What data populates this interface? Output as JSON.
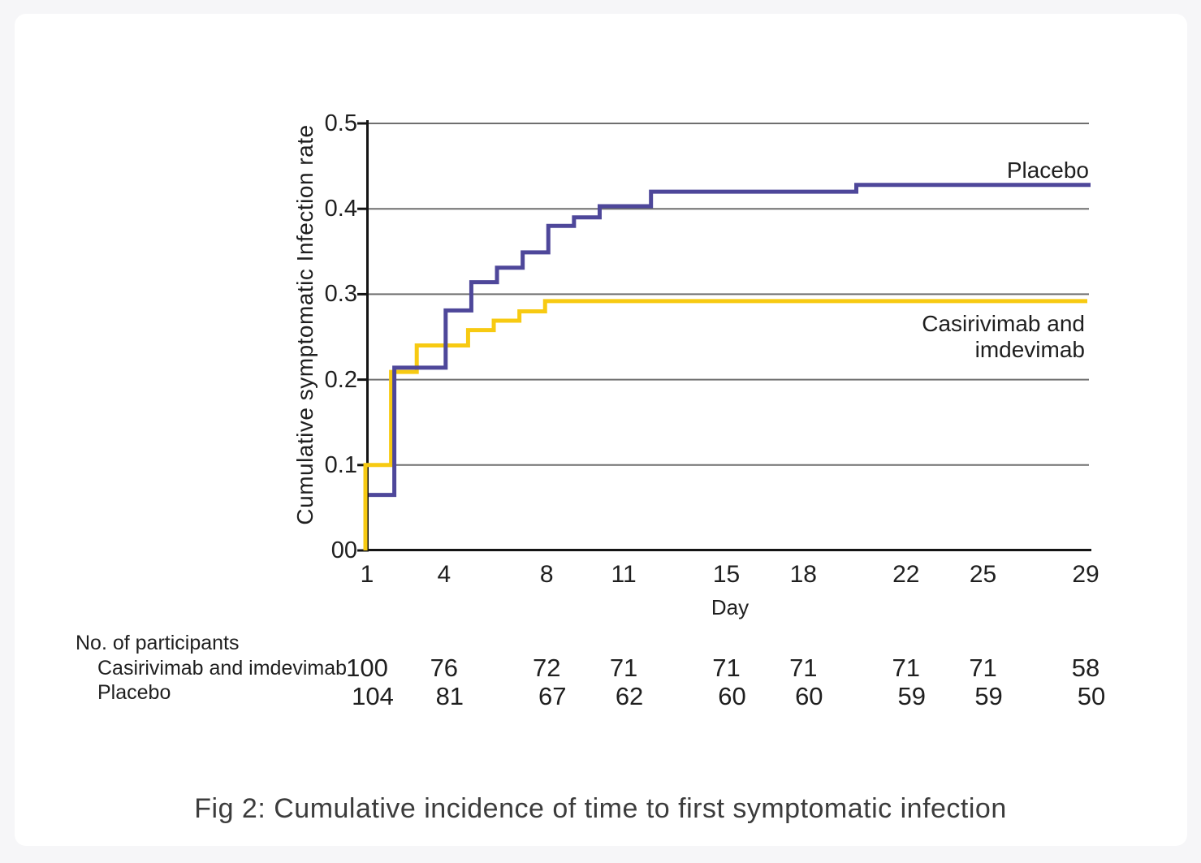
{
  "figure": {
    "caption": "Fig 2: Cumulative incidence of time to first symptomatic infection"
  },
  "chart_data": {
    "type": "line",
    "subtype": "kaplan-meier-step-cumulative-incidence",
    "title": "Fig 2: Cumulative incidence of time to first symptomatic infection",
    "xlabel": "Day",
    "ylabel": "Cumulative  symptomatic Infection  rate",
    "xlim": [
      1,
      29
    ],
    "ylim": [
      0,
      0.5
    ],
    "x_ticks": [
      {
        "value": 1,
        "label": "1"
      },
      {
        "value": 4,
        "label": "4"
      },
      {
        "value": 8,
        "label": "8"
      },
      {
        "value": 11,
        "label": "11"
      },
      {
        "value": 15,
        "label": "15"
      },
      {
        "value": 18,
        "label": "18"
      },
      {
        "value": 22,
        "label": "22"
      },
      {
        "value": 25,
        "label": "25"
      },
      {
        "value": 29,
        "label": "29"
      }
    ],
    "y_ticks": [
      {
        "value": 0.0,
        "label": "00"
      },
      {
        "value": 0.1,
        "label": "0.1"
      },
      {
        "value": 0.2,
        "label": "0.2"
      },
      {
        "value": 0.3,
        "label": "0.3"
      },
      {
        "value": 0.4,
        "label": "0.4"
      },
      {
        "value": 0.5,
        "label": "0.5"
      }
    ],
    "grid": "horizontal-only",
    "grid_color": "#6f6f6f",
    "axis_color": "#141414",
    "legend_position": "inline-labels-right-of-curves",
    "series": [
      {
        "name": "Placebo",
        "color": "#4e479a",
        "steps": [
          [
            1,
            0.065
          ],
          [
            2,
            0.214
          ],
          [
            4,
            0.281
          ],
          [
            5,
            0.314
          ],
          [
            6,
            0.331
          ],
          [
            7,
            0.349
          ],
          [
            8,
            0.38
          ],
          [
            9,
            0.39
          ],
          [
            10,
            0.403
          ],
          [
            12,
            0.42
          ],
          [
            20,
            0.428
          ],
          [
            29,
            0.428
          ]
        ]
      },
      {
        "name": "Casirivimab and imdevimab",
        "color": "#f7ca12",
        "steps": [
          [
            1,
            0.0
          ],
          [
            1,
            0.1
          ],
          [
            2,
            0.209
          ],
          [
            3,
            0.24
          ],
          [
            5,
            0.258
          ],
          [
            6,
            0.269
          ],
          [
            7,
            0.28
          ],
          [
            8,
            0.292
          ],
          [
            29,
            0.292
          ]
        ]
      }
    ],
    "risk_table": {
      "header": "No. of participants",
      "days": [
        1,
        4,
        8,
        11,
        15,
        18,
        22,
        25,
        29
      ],
      "rows": [
        {
          "name": "Casirivimab and imdevimab",
          "values": [
            100,
            76,
            72,
            71,
            71,
            71,
            71,
            71,
            58
          ]
        },
        {
          "name": "Placebo",
          "values": [
            104,
            81,
            67,
            62,
            60,
            60,
            59,
            59,
            50
          ]
        }
      ]
    }
  }
}
